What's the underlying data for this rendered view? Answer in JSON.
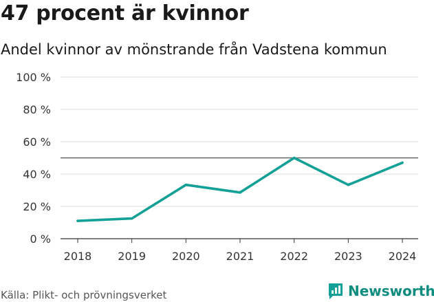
{
  "title": "47 procent är kvinnor",
  "subtitle": "Andel kvinnor av mönstrande från Vadstena kommun",
  "source": "Källa: Plikt- och prövningsverket",
  "brand": "Newsworthy",
  "colors": {
    "line": "#13a096",
    "reference": "#666666",
    "grid": "#dddddd",
    "brand": "#0e8c7e"
  },
  "chart_data": {
    "type": "line",
    "title": "47 procent är kvinnor",
    "subtitle": "Andel kvinnor av mönstrande från Vadstena kommun",
    "x": [
      "2018",
      "2019",
      "2020",
      "2021",
      "2022",
      "2023",
      "2024"
    ],
    "series": [
      {
        "name": "Andel kvinnor",
        "values": [
          11,
          12.5,
          33.3,
          28.6,
          50,
          33.3,
          47
        ]
      }
    ],
    "reference_line": 50,
    "ylim": [
      0,
      100
    ],
    "yticks": [
      0,
      20,
      40,
      60,
      80,
      100
    ],
    "ytick_labels": [
      "0 %",
      "20 %",
      "40 %",
      "60 %",
      "80 %",
      "100 %"
    ],
    "xlabel": "",
    "ylabel": "",
    "grid": true
  }
}
